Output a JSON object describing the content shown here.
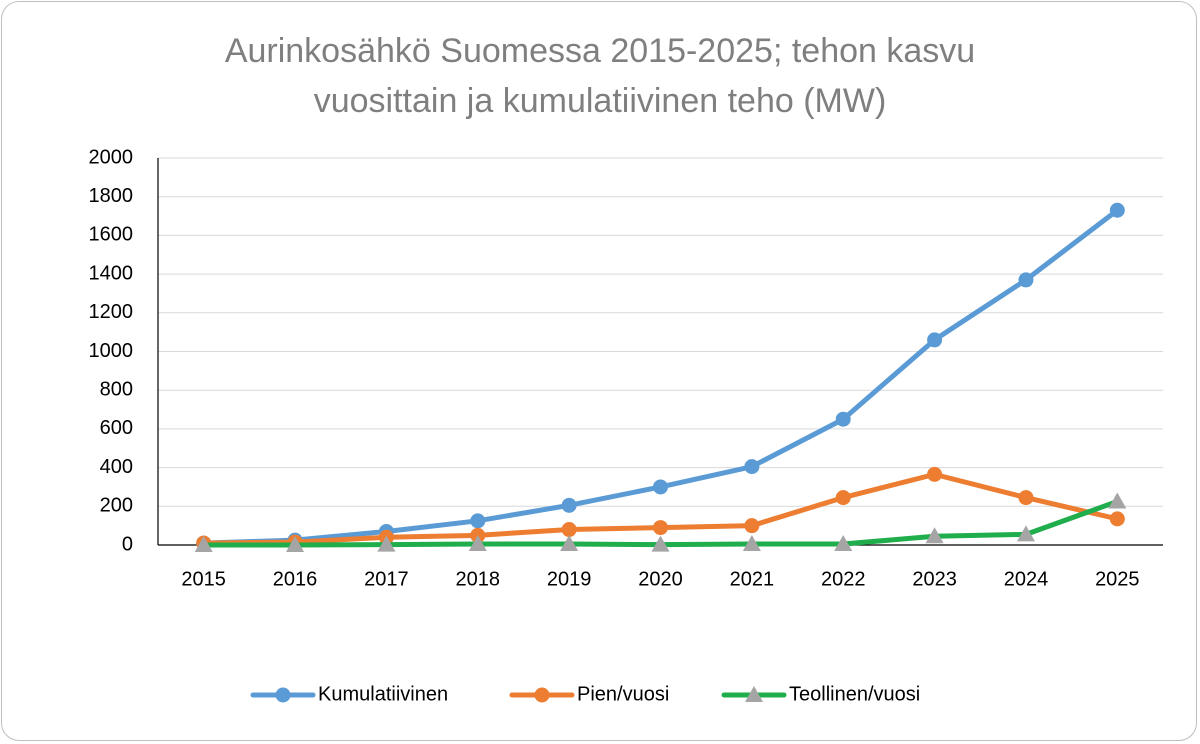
{
  "chart_data": {
    "type": "line",
    "title": "Aurinkosähkö Suomessa 2015-2025; tehon kasvu vuosittain ja kumulatiivinen teho (MW)",
    "categories": [
      "2015",
      "2016",
      "2017",
      "2018",
      "2019",
      "2020",
      "2021",
      "2022",
      "2023",
      "2024",
      "2025"
    ],
    "series": [
      {
        "name": "Kumulatiivinen",
        "color": "#5b9bd5",
        "marker": "circle",
        "marker_color": "#5b9bd5",
        "values": [
          10,
          25,
          70,
          125,
          205,
          300,
          405,
          650,
          1060,
          1370,
          1730
        ]
      },
      {
        "name": "Pien/vuosi",
        "color": "#ed7d31",
        "marker": "circle",
        "marker_color": "#ed7d31",
        "values": [
          10,
          15,
          40,
          50,
          80,
          90,
          100,
          245,
          365,
          245,
          135
        ]
      },
      {
        "name": "Teollinen/vuosi",
        "color": "#1fae4b",
        "marker": "triangle",
        "marker_color": "#a5a5a5",
        "values": [
          0,
          0,
          2,
          5,
          5,
          2,
          5,
          5,
          45,
          55,
          225
        ]
      }
    ],
    "ylim": [
      0,
      2000
    ],
    "yticks": [
      0,
      200,
      400,
      600,
      800,
      1000,
      1200,
      1400,
      1600,
      1800,
      2000
    ],
    "grid": true,
    "legend": "bottom"
  }
}
